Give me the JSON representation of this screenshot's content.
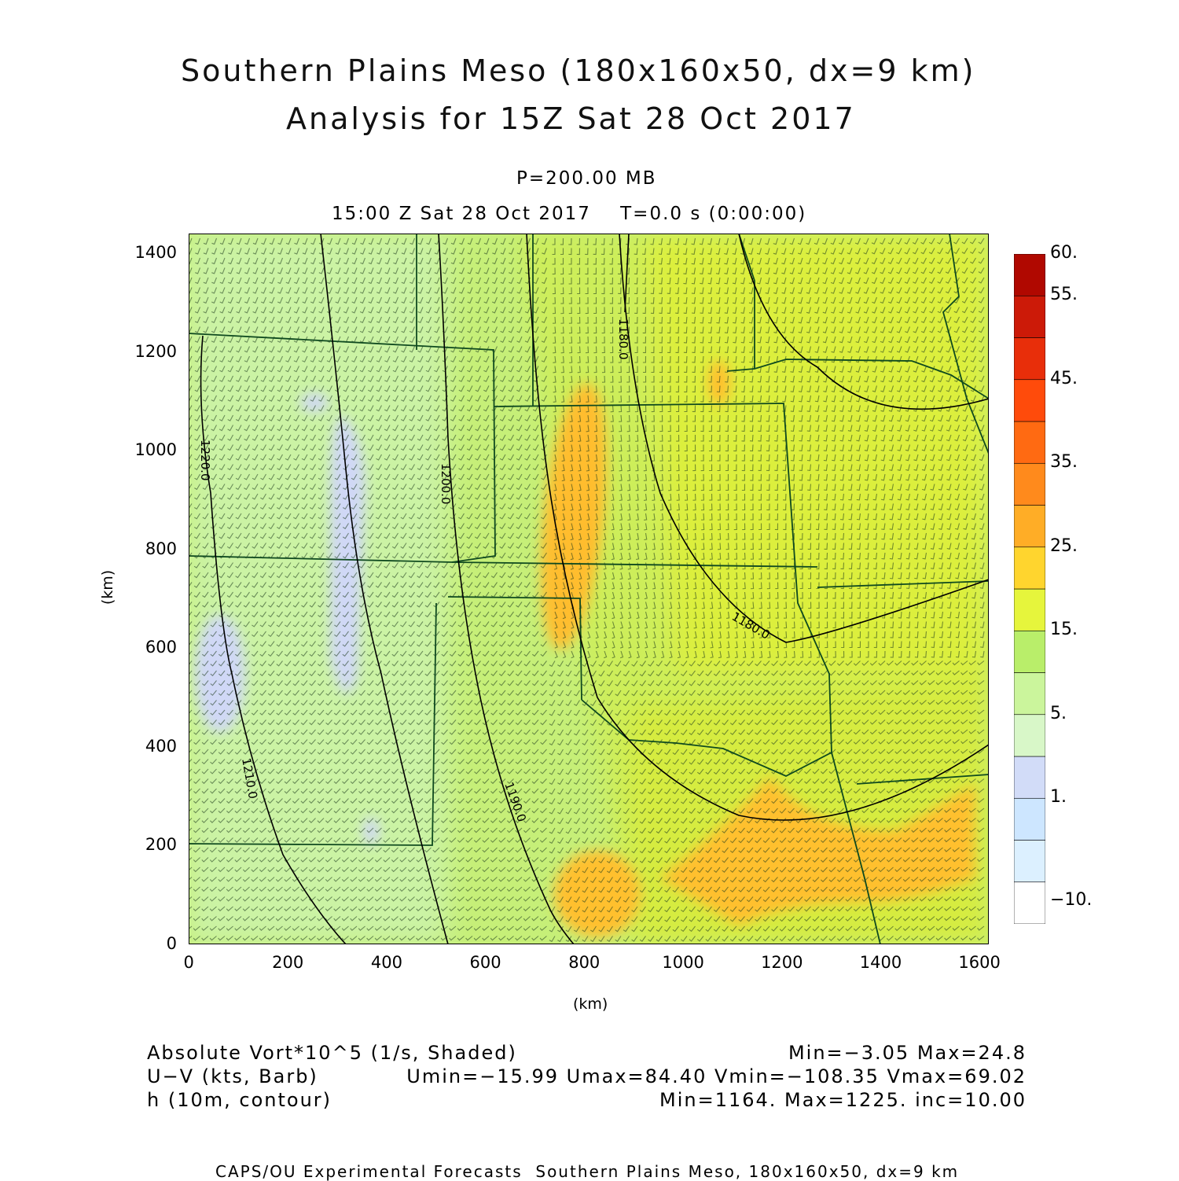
{
  "title": {
    "line1": "Southern Plains Meso (180x160x50, dx=9 km)",
    "line2": "Analysis for 15Z Sat 28 Oct 2017"
  },
  "subtitle": {
    "level": "P=200.00 MB",
    "time": "15:00 Z Sat 28 Oct 2017    T=0.0 s (0:00:00)"
  },
  "axes": {
    "x_label": "(km)",
    "y_label": "(km)",
    "x_ticks": [
      "0",
      "200",
      "400",
      "600",
      "800",
      "1000",
      "1200",
      "1400",
      "1600"
    ],
    "y_ticks": [
      "0",
      "200",
      "400",
      "600",
      "800",
      "1000",
      "1200",
      "1400"
    ],
    "x_range": [
      0,
      1620
    ],
    "y_range": [
      0,
      1440
    ]
  },
  "colorbar": {
    "labels": [
      "60.",
      "55.",
      "45.",
      "35.",
      "25.",
      "15.",
      "5.",
      "1.",
      "-10."
    ],
    "colors": [
      "#ffffff",
      "#dcf0ff",
      "#cde6ff",
      "#d2dcf8",
      "#d8f7c8",
      "#cbf59c",
      "#b9ee6a",
      "#e6f53c",
      "#ffd52e",
      "#ffad26",
      "#ff8a1c",
      "#ff6a12",
      "#ff4b0b",
      "#e82e0a",
      "#cc1a08",
      "#b00800"
    ]
  },
  "contours": {
    "labels": [
      "1220.0",
      "1210.0",
      "1200.0",
      "1190.0",
      "1180.0",
      "1180.0"
    ]
  },
  "legend": {
    "field1": "Absolute Vort*10^5 (1/s, Shaded)",
    "field1_stats": "Min=−3.05 Max=24.8",
    "field2": "U−V (kts, Barb)",
    "field2_stats": "Umin=−15.99 Umax=84.40 Vmin=−108.35 Vmax=69.02",
    "field3": "h (10m, contour)",
    "field3_stats": "Min=1164. Max=1225. inc=10.00"
  },
  "credit": "CAPS/OU Experimental Forecasts  Southern Plains Meso, 180x160x50, dx=9 km"
}
